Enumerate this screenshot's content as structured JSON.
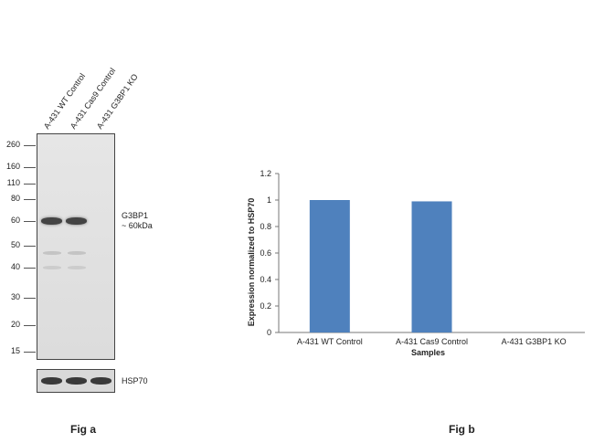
{
  "western_blot": {
    "lane_labels": [
      "A-431 WT Control",
      "A-431 Cas9 Control",
      "A-431  G3BP1 KO"
    ],
    "mw_markers": [
      "260",
      "160",
      "110",
      "80",
      "60",
      "50",
      "40",
      "30",
      "20",
      "15"
    ],
    "target_label_line1": "G3BP1",
    "target_label_line2": "~ 60kDa",
    "loading_control_label": "HSP70",
    "fig_label": "Fig a"
  },
  "chart_data": {
    "type": "bar",
    "categories": [
      "A-431 WT Control",
      "A-431 Cas9 Control",
      "A-431 G3BP1 KO"
    ],
    "values": [
      1.0,
      0.99,
      0.0
    ],
    "xlabel": "Samples",
    "ylabel": "Expression  normalized to HSP70",
    "ylim": [
      0,
      1.2
    ],
    "yticks": [
      "0",
      "0.2",
      "0.4",
      "0.6",
      "0.8",
      "1",
      "1.2"
    ],
    "bar_color": "#4F81BD",
    "grid": false,
    "legend": "none",
    "fig_label": "Fig b"
  }
}
